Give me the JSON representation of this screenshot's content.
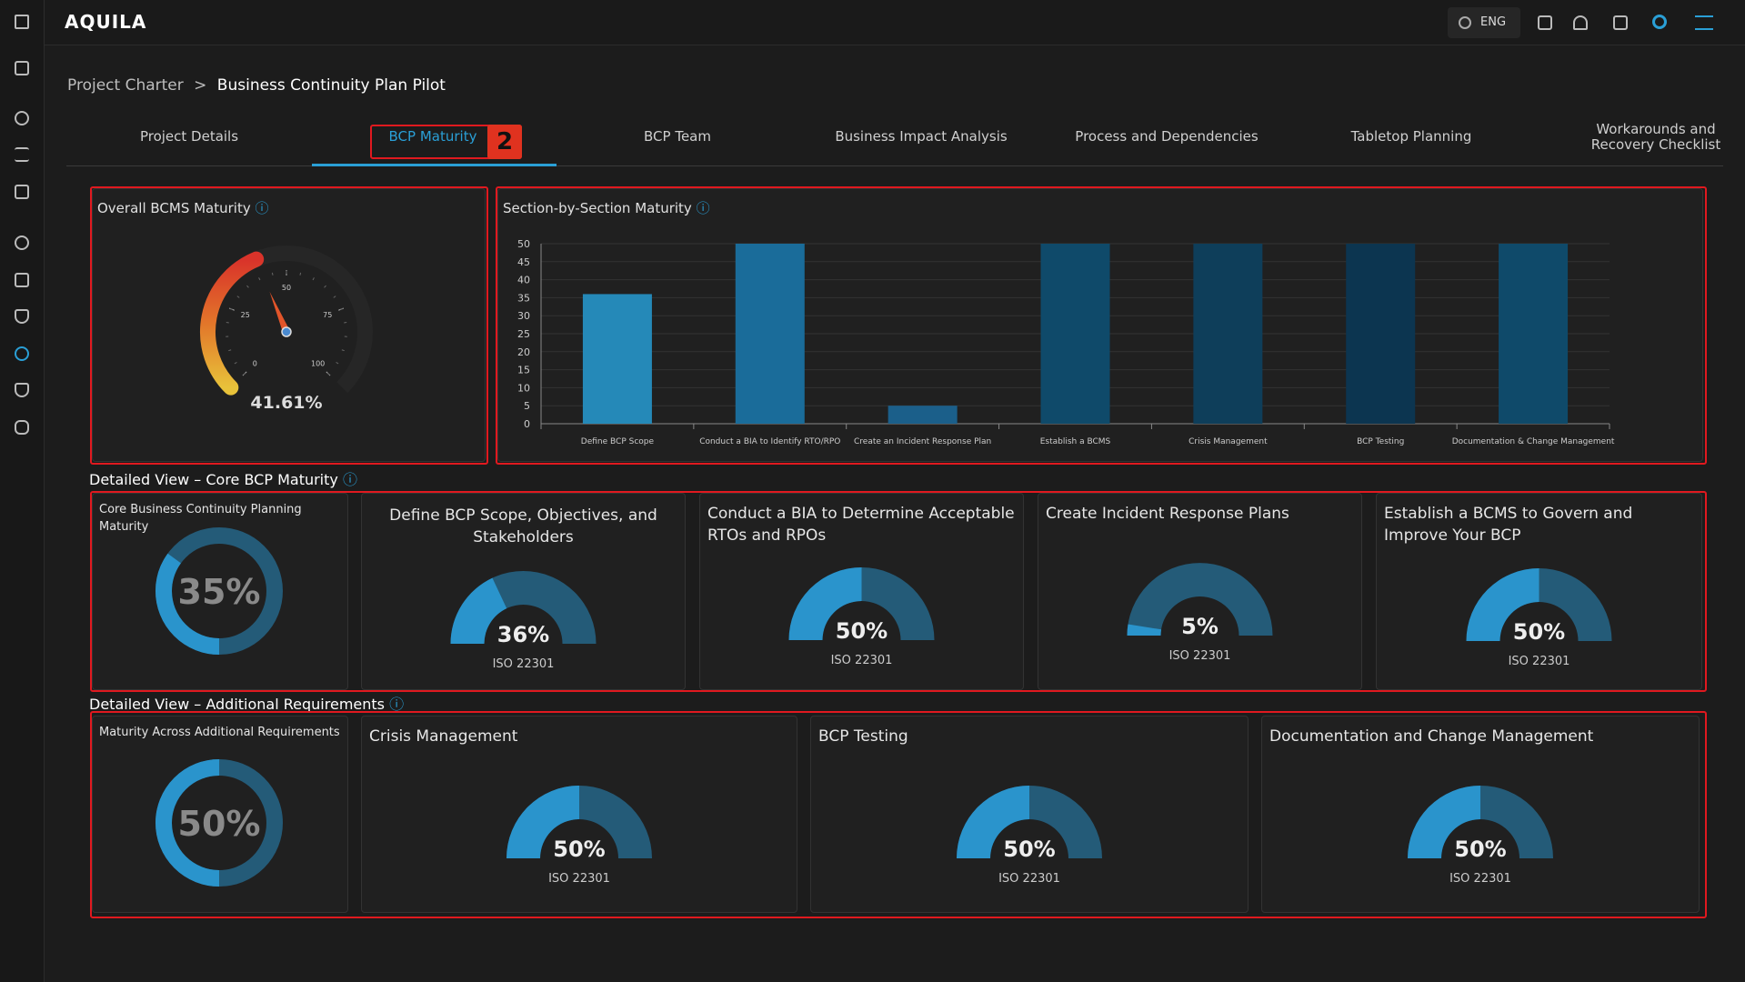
{
  "header": {
    "logo": "AQUILA",
    "language": "ENG"
  },
  "breadcrumb": {
    "parent": "Project Charter",
    "current": "Business Continuity Plan Pilot"
  },
  "tabs": {
    "items": [
      "Project Details",
      "BCP Maturity",
      "BCP Team",
      "Business Impact Analysis",
      "Process and Dependencies",
      "Tabletop Planning",
      "Workarounds and Recovery Checklist"
    ],
    "active": 1,
    "annotation": "2"
  },
  "overall": {
    "type": "gauge",
    "title": "Overall BCMS Maturity",
    "value": 41.61,
    "value_label": "41.61%",
    "ylim": [
      0,
      100
    ],
    "yticks": [
      0,
      25,
      50,
      75,
      100
    ]
  },
  "section": {
    "type": "bar",
    "title": "Section-by-Section Maturity",
    "categories": [
      "Define BCP Scope",
      "Conduct a BIA to Identify RTO/RPO",
      "Create an Incident Response Plan",
      "Establish a BCMS",
      "Crisis Management",
      "BCP Testing",
      "Documentation & Change Management"
    ],
    "values": [
      36,
      50,
      5,
      50,
      50,
      50,
      50
    ],
    "colors": [
      "#2589b8",
      "#1a6c9a",
      "#1b5f8a",
      "#0f4a6a",
      "#0e3e5a",
      "#0c3550",
      "#0f4a6a"
    ],
    "ylim": [
      0,
      50
    ],
    "yticks": [
      0,
      5,
      10,
      15,
      20,
      25,
      30,
      35,
      40,
      45,
      50
    ],
    "grid": true
  },
  "core": {
    "heading": "Detailed View – Core BCP Maturity",
    "summary": {
      "title": "Core Business Continuity Planning Maturity",
      "value": 35,
      "value_label": "35%"
    },
    "cards": [
      {
        "title": "Define BCP Scope, Objectives, and Stakeholders",
        "value": 36,
        "value_label": "36%",
        "standard": "ISO 22301"
      },
      {
        "title": "Conduct a BIA to Determine Acceptable RTOs and RPOs",
        "value": 50,
        "value_label": "50%",
        "standard": "ISO 22301"
      },
      {
        "title": "Create Incident Response Plans",
        "value": 5,
        "value_label": "5%",
        "standard": "ISO 22301"
      },
      {
        "title": "Establish a BCMS to Govern and Improve Your BCP",
        "value": 50,
        "value_label": "50%",
        "standard": "ISO 22301"
      }
    ]
  },
  "additional": {
    "heading": "Detailed View – Additional Requirements",
    "summary": {
      "title": "Maturity Across Additional Requirements",
      "value": 50,
      "value_label": "50%"
    },
    "cards": [
      {
        "title": "Crisis Management",
        "value": 50,
        "value_label": "50%",
        "standard": "ISO 22301"
      },
      {
        "title": "BCP Testing",
        "value": 50,
        "value_label": "50%",
        "standard": "ISO 22301"
      },
      {
        "title": "Documentation and Change Management",
        "value": 50,
        "value_label": "50%",
        "standard": "ISO 22301"
      }
    ]
  }
}
